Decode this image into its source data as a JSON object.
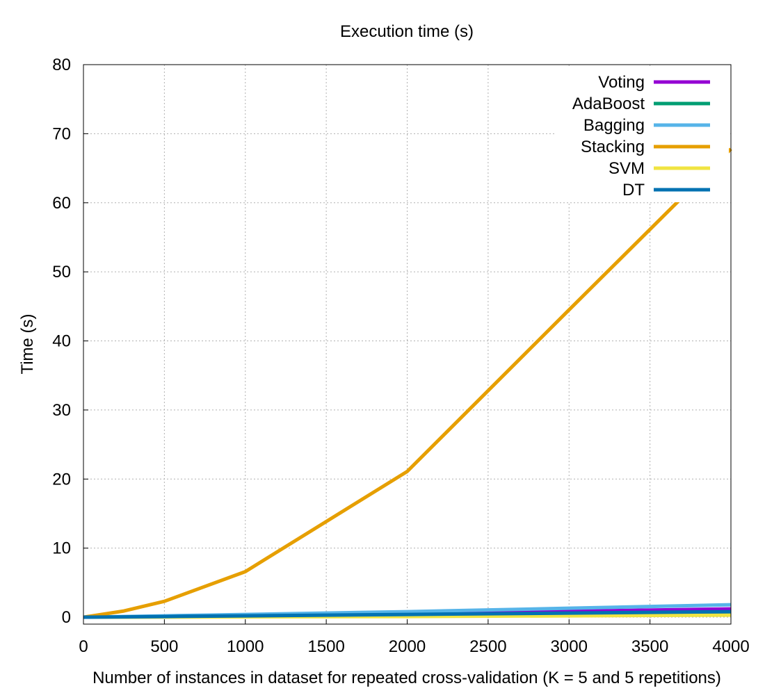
{
  "chart_data": {
    "type": "line",
    "title": "Execution time (s)",
    "xlabel": "Number of instances in dataset for repeated cross-validation (K = 5 and 5 repetitions)",
    "ylabel": "Time (s)",
    "xlim": [
      0,
      4000
    ],
    "ylim": [
      -1,
      80
    ],
    "xticks": [
      0,
      500,
      1000,
      1500,
      2000,
      2500,
      3000,
      3500,
      4000
    ],
    "yticks": [
      0,
      10,
      20,
      30,
      40,
      50,
      60,
      70,
      80
    ],
    "grid": true,
    "legend_position": "top-right",
    "x": [
      0,
      250,
      500,
      1000,
      2000,
      3000,
      4000
    ],
    "series": [
      {
        "name": "Voting",
        "color": "#9400d3",
        "values": [
          0,
          0.05,
          0.1,
          0.25,
          0.5,
          0.85,
          1.2
        ]
      },
      {
        "name": "AdaBoost",
        "color": "#009e73",
        "values": [
          0,
          0.03,
          0.06,
          0.15,
          0.3,
          0.5,
          0.7
        ]
      },
      {
        "name": "Bagging",
        "color": "#56b4e9",
        "values": [
          0,
          0.1,
          0.2,
          0.4,
          0.8,
          1.3,
          1.8
        ]
      },
      {
        "name": "Stacking",
        "color": "#e69f00",
        "values": [
          0,
          0.9,
          2.3,
          6.6,
          21.1,
          44.5,
          67.8
        ]
      },
      {
        "name": "SVM",
        "color": "#f0e442",
        "values": [
          0,
          0.01,
          0.02,
          0.05,
          0.1,
          0.2,
          0.3
        ]
      },
      {
        "name": "DT",
        "color": "#0072b2",
        "values": [
          0,
          0.05,
          0.1,
          0.2,
          0.4,
          0.6,
          0.8
        ]
      }
    ]
  }
}
